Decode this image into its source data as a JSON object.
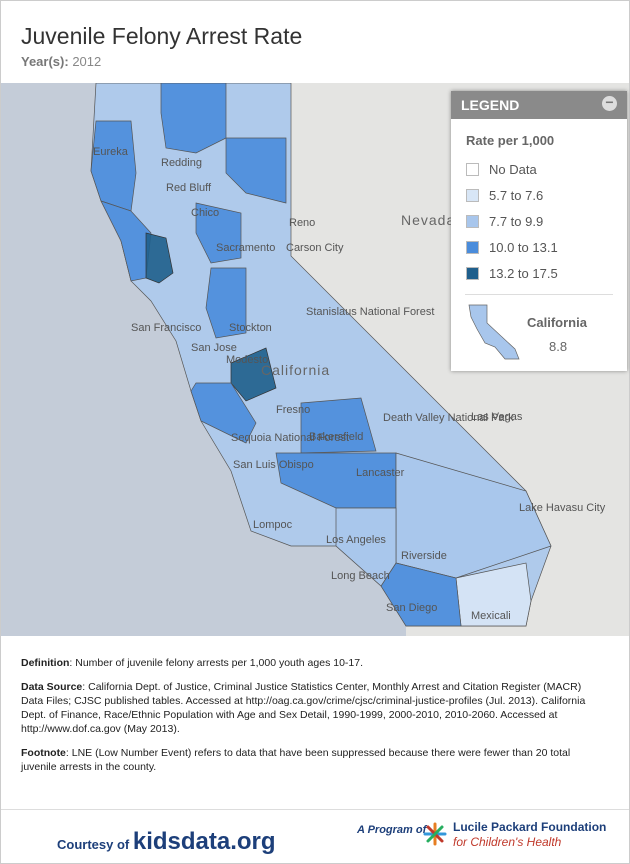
{
  "header": {
    "title": "Juvenile Felony Arrest Rate",
    "year_label": "Year(s):",
    "year": "2012"
  },
  "legend": {
    "title": "LEGEND",
    "subtitle": "Rate per 1,000",
    "items": [
      {
        "label": "No Data",
        "color": "#ffffff"
      },
      {
        "label": "5.7 to 7.6",
        "color": "#d8e6f6"
      },
      {
        "label": "7.7 to 9.9",
        "color": "#a8c6ec"
      },
      {
        "label": "10.0 to 13.1",
        "color": "#4a8cdb"
      },
      {
        "label": "13.2 to 17.5",
        "color": "#1f5f8c"
      }
    ],
    "state": "California",
    "state_value": "8.8"
  },
  "map": {
    "labels": [
      "Eureka",
      "Redding",
      "Red Bluff",
      "Chico",
      "Reno",
      "Carson City",
      "Nevada",
      "Sacramento",
      "San Francisco",
      "Stockton",
      "Modesto",
      "Stanislaus National Forest",
      "San Jose",
      "California",
      "Fresno",
      "Sequoia National Forest",
      "Death Valley National Park",
      "Las Vegas",
      "Bakersfield",
      "San Luis Obispo",
      "Lompoc",
      "Lancaster",
      "Los Angeles",
      "Long Beach",
      "Riverside",
      "San Diego",
      "Mexicali",
      "Lake Havasu City"
    ]
  },
  "notes": {
    "definition_label": "Definition",
    "definition": ": Number of juvenile felony arrests per 1,000 youth ages 10-17.",
    "source_label": "Data Source",
    "source": ": California Dept. of Justice, Criminal Justice Statistics Center, Monthly Arrest and Citation Register (MACR) Data Files; CJSC published tables. Accessed at http://oag.ca.gov/crime/cjsc/criminal-justice-profiles (Jul. 2013). California Dept. of Finance, Race/Ethnic Population with Age and Sex Detail, 1990-1999, 2000-2010, 2010-2060. Accessed at http://www.dof.ca.gov (May 2013).",
    "footnote_label": "Footnote",
    "footnote": ": LNE (Low Number Event) refers to data that have been suppressed because there were fewer than 20 total juvenile arrests in the county."
  },
  "footer": {
    "courtesy": "Courtesy of",
    "site": "kidsdata.org",
    "program": "A Program of",
    "org": "Lucile Packard Foundation",
    "org_sub": "for Children's Health"
  }
}
